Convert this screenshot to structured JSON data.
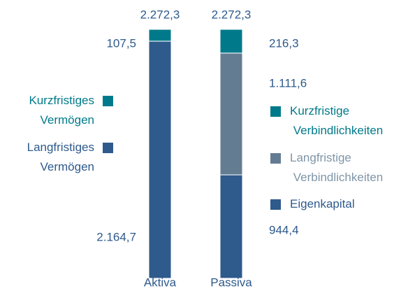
{
  "chart_data": {
    "type": "stacked-bar",
    "categories": [
      "Aktiva",
      "Passiva"
    ],
    "series": [
      {
        "name": "Langfristiges Vermögen",
        "color": "#2e5a8c",
        "values": [
          2164.7,
          null
        ],
        "value_labels": [
          "2.164,7",
          null
        ]
      },
      {
        "name": "Kurzfristiges Vermögen",
        "color": "#007a8a",
        "values": [
          107.5,
          null
        ],
        "value_labels": [
          "107,5",
          null
        ]
      },
      {
        "name": "Eigenkapital",
        "color": "#2e5a8c",
        "values": [
          null,
          944.4
        ],
        "value_labels": [
          null,
          "944,4"
        ]
      },
      {
        "name": "Langfristige Verbindlichkeiten",
        "color": "#647c92",
        "values": [
          null,
          1111.6
        ],
        "value_labels": [
          null,
          "1.111,6"
        ]
      },
      {
        "name": "Kurzfristige Verbindlichkeiten",
        "color": "#007a8a",
        "values": [
          null,
          216.3
        ],
        "value_labels": [
          null,
          "216,3"
        ]
      }
    ],
    "totals": [
      2272.3,
      2272.3
    ],
    "total_labels": [
      "2.272,3",
      "2.272,3"
    ]
  }
}
